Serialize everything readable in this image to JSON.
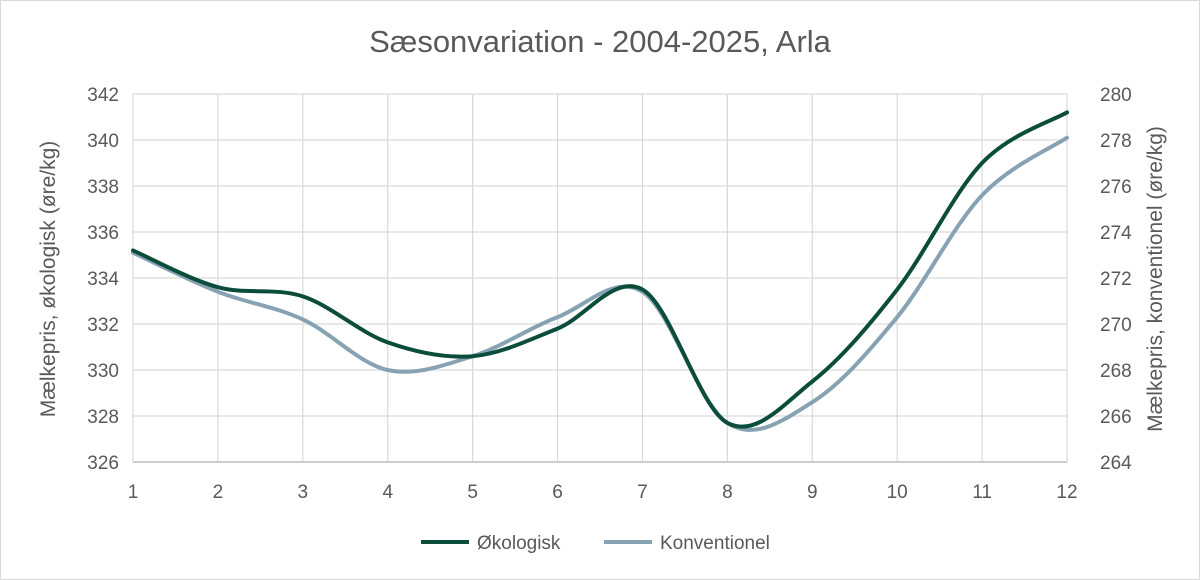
{
  "chart_data": {
    "type": "line",
    "title": "Sæsonvariation - 2004-2025, Arla",
    "x": [
      1,
      2,
      3,
      4,
      5,
      6,
      7,
      8,
      9,
      10,
      11,
      12
    ],
    "x_tick_labels": [
      "1",
      "2",
      "3",
      "4",
      "5",
      "6",
      "7",
      "8",
      "9",
      "10",
      "11",
      "12"
    ],
    "ylabel_left": "Mælkepris, økologisk (øre/kg)",
    "ylabel_right": "Mælkepris, konventionel (øre/kg)",
    "ylim_left": [
      326,
      342
    ],
    "ylim_right": [
      264,
      280
    ],
    "y_ticks_left": [
      "326",
      "328",
      "330",
      "332",
      "334",
      "336",
      "338",
      "340",
      "342"
    ],
    "y_ticks_right": [
      "264",
      "266",
      "268",
      "270",
      "272",
      "274",
      "276",
      "278",
      "280"
    ],
    "grid": true,
    "legend_position": "bottom",
    "series": [
      {
        "name": "Økologisk",
        "axis": "left",
        "color": "#0b4d3a",
        "values": [
          335.2,
          333.6,
          333.2,
          331.2,
          330.6,
          331.8,
          333.5,
          327.7,
          329.5,
          333.5,
          339.0,
          341.2
        ]
      },
      {
        "name": "Konventionel",
        "axis": "right",
        "color": "#87a3b3",
        "values": [
          273.1,
          271.4,
          270.2,
          268.0,
          268.6,
          270.3,
          271.4,
          265.7,
          266.6,
          270.3,
          275.6,
          278.1
        ]
      }
    ]
  }
}
